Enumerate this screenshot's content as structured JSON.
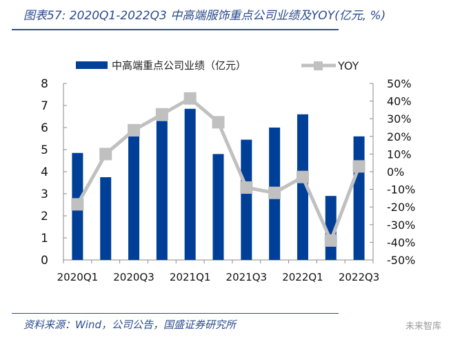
{
  "title": "图表57: 2020Q1-2022Q3 中高端服饰重点公司业绩及YOY(亿元, %)",
  "source": "资料来源：Wind，公司公告，国盛证券研究所",
  "watermark": "未来智库",
  "chart_data": {
    "type": "bar+line",
    "categories": [
      "2020Q1",
      "2020Q2",
      "2020Q3",
      "2020Q4",
      "2021Q1",
      "2021Q2",
      "2021Q3",
      "2021Q4",
      "2022Q1",
      "2022Q2",
      "2022Q3"
    ],
    "x_tick_labels": [
      "2020Q1",
      "2020Q3",
      "2021Q1",
      "2021Q3",
      "2022Q1",
      "2022Q3"
    ],
    "series": [
      {
        "name": "中高端重点公司业绩（亿元）",
        "type": "bar",
        "axis": "left",
        "color": "#003f98",
        "values": [
          4.85,
          3.75,
          5.6,
          6.3,
          6.85,
          4.8,
          5.45,
          6.0,
          6.6,
          2.9,
          5.6
        ]
      },
      {
        "name": "YOY",
        "type": "line",
        "axis": "right",
        "color": "#c0c0c0",
        "values": [
          -18.5,
          10,
          23.5,
          32.5,
          41.5,
          28,
          -9,
          -12,
          -3,
          -39,
          3
        ]
      }
    ],
    "y_left": {
      "lim": [
        0,
        8
      ],
      "ticks": [
        "0",
        "1",
        "2",
        "3",
        "4",
        "5",
        "6",
        "7",
        "8"
      ]
    },
    "y_right": {
      "lim": [
        -50,
        50
      ],
      "ticks": [
        "-50%",
        "-40%",
        "-30%",
        "-20%",
        "-10%",
        "0%",
        "10%",
        "20%",
        "30%",
        "40%",
        "50%"
      ]
    },
    "legend": "top",
    "grid": false
  }
}
